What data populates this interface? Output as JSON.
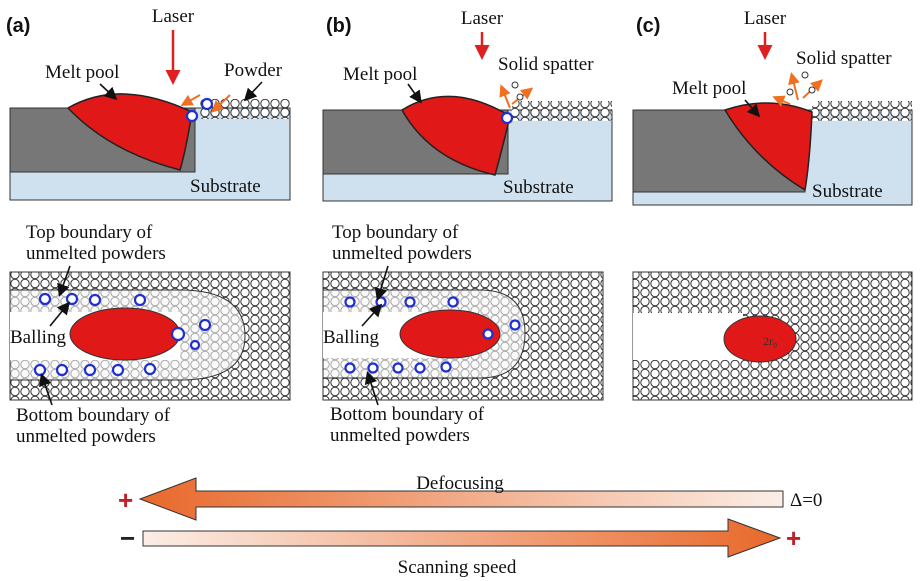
{
  "panels": [
    {
      "label": "(a)",
      "laser": "Laser",
      "melt_pool": "Melt pool",
      "powder": "Powder",
      "substrate": "Substrate",
      "top_boundary": [
        "Top boundary of",
        "unmelted powders"
      ],
      "balling": "Balling",
      "bottom_boundary": [
        "Bottom boundary of",
        "unmelted powders"
      ]
    },
    {
      "label": "(b)",
      "laser": "Laser",
      "solid_spatter": "Solid spatter",
      "melt_pool": "Melt pool",
      "substrate": "Substrate",
      "top_boundary": [
        "Top boundary of",
        "unmelted powders"
      ],
      "balling": "Balling",
      "bottom_boundary": [
        "Bottom boundary of",
        "unmelted powders"
      ]
    },
    {
      "label": "(c)",
      "laser": "Laser",
      "solid_spatter": "Solid spatter",
      "melt_pool": "Melt pool",
      "substrate": "Substrate",
      "spot": "2r₀"
    }
  ],
  "scale": {
    "defocus_plus": "+",
    "defocusing": "Defocusing",
    "delta": "Δ=0",
    "speed_minus": "−",
    "speed_plus": "+",
    "scanning_speed": "Scanning speed"
  }
}
